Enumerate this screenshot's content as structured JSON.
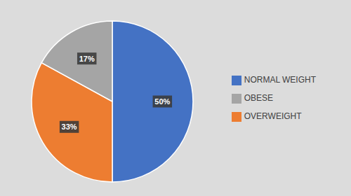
{
  "chart_data": {
    "type": "pie",
    "categories": [
      "NORMAL WEIGHT",
      "OVERWEIGHT",
      "OBESE"
    ],
    "values": [
      50,
      33,
      17
    ],
    "value_labels": [
      "50%",
      "33%",
      "17%"
    ],
    "colors": [
      "#4472C4",
      "#ED7D31",
      "#A5A5A5"
    ],
    "data_labels": true,
    "legend": "right"
  }
}
